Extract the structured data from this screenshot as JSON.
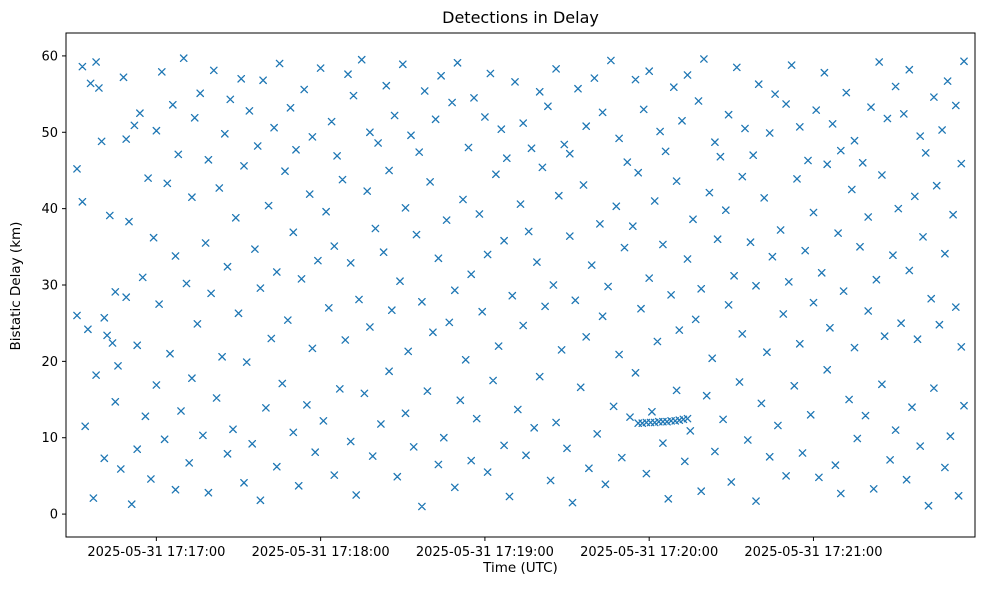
{
  "figure": {
    "title": "Detections in Delay",
    "xlabel": "Time (UTC)",
    "ylabel": "Bistatic Delay (km)"
  },
  "chart_data": {
    "type": "scatter",
    "title": "Detections in Delay",
    "xlabel": "Time (UTC)",
    "ylabel": "Bistatic Delay (km)",
    "marker": "x",
    "marker_color": "#1f77b4",
    "grid": false,
    "legend": "none",
    "x_unit": "seconds since 2025-05-31 17:16:00 UTC",
    "xlim": [
      27,
      359
    ],
    "ylim": [
      -3,
      63
    ],
    "x_ticks": [
      {
        "value": 60,
        "label": "2025-05-31 17:17:00"
      },
      {
        "value": 120,
        "label": "2025-05-31 17:18:00"
      },
      {
        "value": 180,
        "label": "2025-05-31 17:19:00"
      },
      {
        "value": 240,
        "label": "2025-05-31 17:20:00"
      },
      {
        "value": 300,
        "label": "2025-05-31 17:21:00"
      }
    ],
    "y_ticks": [
      0,
      10,
      20,
      30,
      40,
      50,
      60
    ],
    "annotation": "Random uniform scatter of detections 0-60 km across whole window, plus a dense near-linear cluster of detections at ~12 km bistatic delay between ~17:19:56 and ~17:20:14",
    "points": [
      [
        31,
        45.2
      ],
      [
        31,
        26.0
      ],
      [
        33,
        40.9
      ],
      [
        33,
        58.6
      ],
      [
        34,
        11.5
      ],
      [
        35,
        24.2
      ],
      [
        36,
        56.4
      ],
      [
        37,
        2.1
      ],
      [
        38,
        18.2
      ],
      [
        38,
        59.2
      ],
      [
        39,
        55.8
      ],
      [
        40,
        48.8
      ],
      [
        41,
        25.7
      ],
      [
        41,
        7.3
      ],
      [
        42,
        23.4
      ],
      [
        43,
        39.1
      ],
      [
        44,
        22.4
      ],
      [
        45,
        14.7
      ],
      [
        45,
        29.1
      ],
      [
        46,
        19.4
      ],
      [
        47,
        5.9
      ],
      [
        48,
        57.2
      ],
      [
        49,
        28.4
      ],
      [
        49,
        49.1
      ],
      [
        50,
        38.3
      ],
      [
        51,
        1.3
      ],
      [
        52,
        50.9
      ],
      [
        53,
        8.5
      ],
      [
        53,
        22.1
      ],
      [
        54,
        52.5
      ],
      [
        55,
        31.0
      ],
      [
        56,
        12.8
      ],
      [
        57,
        44.0
      ],
      [
        58,
        4.6
      ],
      [
        59,
        36.2
      ],
      [
        60,
        50.2
      ],
      [
        60,
        16.9
      ],
      [
        61,
        27.5
      ],
      [
        62,
        57.9
      ],
      [
        63,
        9.8
      ],
      [
        64,
        43.3
      ],
      [
        65,
        21.0
      ],
      [
        66,
        53.6
      ],
      [
        67,
        3.2
      ],
      [
        67,
        33.8
      ],
      [
        68,
        47.1
      ],
      [
        69,
        13.5
      ],
      [
        70,
        59.7
      ],
      [
        71,
        30.2
      ],
      [
        72,
        6.7
      ],
      [
        73,
        41.5
      ],
      [
        73,
        17.8
      ],
      [
        74,
        51.9
      ],
      [
        75,
        24.9
      ],
      [
        76,
        55.1
      ],
      [
        77,
        10.3
      ],
      [
        78,
        35.5
      ],
      [
        79,
        46.4
      ],
      [
        79,
        2.8
      ],
      [
        80,
        28.9
      ],
      [
        81,
        58.1
      ],
      [
        82,
        15.2
      ],
      [
        83,
        42.7
      ],
      [
        84,
        20.6
      ],
      [
        85,
        49.8
      ],
      [
        86,
        7.9
      ],
      [
        86,
        32.4
      ],
      [
        87,
        54.3
      ],
      [
        88,
        11.1
      ],
      [
        89,
        38.8
      ],
      [
        90,
        26.3
      ],
      [
        91,
        57.0
      ],
      [
        92,
        4.1
      ],
      [
        92,
        45.6
      ],
      [
        93,
        19.9
      ],
      [
        94,
        52.8
      ],
      [
        95,
        9.2
      ],
      [
        96,
        34.7
      ],
      [
        97,
        48.2
      ],
      [
        98,
        1.8
      ],
      [
        98,
        29.6
      ],
      [
        99,
        56.8
      ],
      [
        100,
        13.9
      ],
      [
        101,
        40.4
      ],
      [
        102,
        23.0
      ],
      [
        103,
        50.6
      ],
      [
        104,
        6.2
      ],
      [
        104,
        31.7
      ],
      [
        105,
        59.0
      ],
      [
        106,
        17.1
      ],
      [
        107,
        44.9
      ],
      [
        108,
        25.4
      ],
      [
        109,
        53.2
      ],
      [
        110,
        10.7
      ],
      [
        110,
        36.9
      ],
      [
        111,
        47.7
      ],
      [
        112,
        3.7
      ],
      [
        113,
        30.8
      ],
      [
        114,
        55.6
      ],
      [
        115,
        14.3
      ],
      [
        116,
        41.9
      ],
      [
        117,
        21.7
      ],
      [
        117,
        49.4
      ],
      [
        118,
        8.1
      ],
      [
        119,
        33.2
      ],
      [
        120,
        58.4
      ],
      [
        121,
        12.2
      ],
      [
        122,
        39.6
      ],
      [
        123,
        27.0
      ],
      [
        124,
        51.4
      ],
      [
        125,
        5.1
      ],
      [
        125,
        35.1
      ],
      [
        126,
        46.9
      ],
      [
        127,
        16.4
      ],
      [
        128,
        43.8
      ],
      [
        129,
        22.8
      ],
      [
        130,
        57.6
      ],
      [
        131,
        9.5
      ],
      [
        131,
        32.9
      ],
      [
        132,
        54.8
      ],
      [
        133,
        2.5
      ],
      [
        134,
        28.1
      ],
      [
        135,
        59.5
      ],
      [
        136,
        15.8
      ],
      [
        137,
        42.3
      ],
      [
        138,
        24.5
      ],
      [
        138,
        50.0
      ],
      [
        139,
        7.6
      ],
      [
        140,
        37.4
      ],
      [
        141,
        48.6
      ],
      [
        142,
        11.8
      ],
      [
        143,
        34.3
      ],
      [
        144,
        56.1
      ],
      [
        145,
        18.7
      ],
      [
        145,
        45.0
      ],
      [
        146,
        26.7
      ],
      [
        147,
        52.2
      ],
      [
        148,
        4.9
      ],
      [
        149,
        30.5
      ],
      [
        150,
        58.9
      ],
      [
        151,
        13.2
      ],
      [
        151,
        40.1
      ],
      [
        152,
        21.3
      ],
      [
        153,
        49.6
      ],
      [
        154,
        8.8
      ],
      [
        155,
        36.6
      ],
      [
        156,
        47.4
      ],
      [
        157,
        1.0
      ],
      [
        157,
        27.8
      ],
      [
        158,
        55.4
      ],
      [
        159,
        16.1
      ],
      [
        160,
        43.5
      ],
      [
        161,
        23.8
      ],
      [
        162,
        51.7
      ],
      [
        163,
        6.5
      ],
      [
        163,
        33.5
      ],
      [
        164,
        57.4
      ],
      [
        165,
        10.0
      ],
      [
        166,
        38.5
      ],
      [
        167,
        25.1
      ],
      [
        168,
        53.9
      ],
      [
        169,
        3.5
      ],
      [
        169,
        29.3
      ],
      [
        170,
        59.1
      ],
      [
        171,
        14.9
      ],
      [
        172,
        41.2
      ],
      [
        173,
        20.2
      ],
      [
        174,
        48.0
      ],
      [
        175,
        7.0
      ],
      [
        175,
        31.4
      ],
      [
        176,
        54.5
      ],
      [
        177,
        12.5
      ],
      [
        178,
        39.3
      ],
      [
        179,
        26.5
      ],
      [
        180,
        52.0
      ],
      [
        181,
        5.5
      ],
      [
        181,
        34.0
      ],
      [
        182,
        57.7
      ],
      [
        183,
        17.5
      ],
      [
        184,
        44.5
      ],
      [
        185,
        22.0
      ],
      [
        186,
        50.4
      ],
      [
        187,
        9.0
      ],
      [
        187,
        35.8
      ],
      [
        188,
        46.6
      ],
      [
        189,
        2.3
      ],
      [
        190,
        28.6
      ],
      [
        191,
        56.6
      ],
      [
        192,
        13.7
      ],
      [
        193,
        40.6
      ],
      [
        194,
        24.7
      ],
      [
        194,
        51.2
      ],
      [
        195,
        7.7
      ],
      [
        196,
        37.0
      ],
      [
        197,
        47.9
      ],
      [
        198,
        11.3
      ],
      [
        199,
        33.0
      ],
      [
        200,
        55.3
      ],
      [
        200,
        18.0
      ],
      [
        201,
        45.4
      ],
      [
        202,
        27.2
      ],
      [
        203,
        53.4
      ],
      [
        204,
        4.4
      ],
      [
        205,
        30.0
      ],
      [
        206,
        58.3
      ],
      [
        206,
        12.0
      ],
      [
        207,
        41.7
      ],
      [
        208,
        21.5
      ],
      [
        209,
        48.4
      ],
      [
        210,
        8.6
      ],
      [
        211,
        36.4
      ],
      [
        211,
        47.2
      ],
      [
        212,
        1.5
      ],
      [
        213,
        28.0
      ],
      [
        214,
        55.7
      ],
      [
        215,
        16.6
      ],
      [
        216,
        43.1
      ],
      [
        217,
        23.2
      ],
      [
        217,
        50.8
      ],
      [
        218,
        6.0
      ],
      [
        219,
        32.6
      ],
      [
        220,
        57.1
      ],
      [
        221,
        10.5
      ],
      [
        222,
        38.0
      ],
      [
        223,
        25.9
      ],
      [
        223,
        52.6
      ],
      [
        224,
        3.9
      ],
      [
        225,
        29.8
      ],
      [
        226,
        59.4
      ],
      [
        227,
        14.1
      ],
      [
        228,
        40.3
      ],
      [
        229,
        20.9
      ],
      [
        229,
        49.2
      ],
      [
        230,
        7.4
      ],
      [
        231,
        34.9
      ],
      [
        232,
        46.1
      ],
      [
        233,
        12.7
      ],
      [
        234,
        37.7
      ],
      [
        235,
        56.9
      ],
      [
        235,
        18.5
      ],
      [
        236,
        44.7
      ],
      [
        237,
        26.9
      ],
      [
        238,
        53.0
      ],
      [
        239,
        5.3
      ],
      [
        240,
        30.9
      ],
      [
        240,
        58.0
      ],
      [
        241,
        13.4
      ],
      [
        242,
        41.0
      ],
      [
        243,
        22.6
      ],
      [
        244,
        50.1
      ],
      [
        245,
        9.3
      ],
      [
        245,
        35.3
      ],
      [
        246,
        47.5
      ],
      [
        247,
        2.0
      ],
      [
        248,
        28.7
      ],
      [
        249,
        55.9
      ],
      [
        250,
        16.2
      ],
      [
        250,
        43.6
      ],
      [
        251,
        24.1
      ],
      [
        252,
        51.5
      ],
      [
        253,
        6.9
      ],
      [
        254,
        33.4
      ],
      [
        254,
        57.5
      ],
      [
        255,
        10.9
      ],
      [
        256,
        38.6
      ],
      [
        257,
        25.5
      ],
      [
        258,
        54.1
      ],
      [
        259,
        3.0
      ],
      [
        259,
        29.5
      ],
      [
        260,
        59.6
      ],
      [
        261,
        15.5
      ],
      [
        262,
        42.1
      ],
      [
        263,
        20.4
      ],
      [
        264,
        48.7
      ],
      [
        264,
        8.2
      ],
      [
        265,
        36.0
      ],
      [
        266,
        46.8
      ],
      [
        267,
        12.4
      ],
      [
        268,
        39.8
      ],
      [
        269,
        27.4
      ],
      [
        269,
        52.3
      ],
      [
        270,
        4.2
      ],
      [
        271,
        31.2
      ],
      [
        272,
        58.5
      ],
      [
        273,
        17.3
      ],
      [
        274,
        44.2
      ],
      [
        274,
        23.6
      ],
      [
        275,
        50.5
      ],
      [
        276,
        9.7
      ],
      [
        277,
        35.6
      ],
      [
        278,
        47.0
      ],
      [
        279,
        1.7
      ],
      [
        279,
        29.9
      ],
      [
        280,
        56.3
      ],
      [
        281,
        14.5
      ],
      [
        282,
        41.4
      ],
      [
        283,
        21.2
      ],
      [
        284,
        49.9
      ],
      [
        284,
        7.5
      ],
      [
        285,
        33.7
      ],
      [
        286,
        55.0
      ],
      [
        287,
        11.6
      ],
      [
        288,
        37.2
      ],
      [
        289,
        26.2
      ],
      [
        290,
        53.7
      ],
      [
        290,
        5.0
      ],
      [
        291,
        30.4
      ],
      [
        292,
        58.8
      ],
      [
        293,
        16.8
      ],
      [
        294,
        43.9
      ],
      [
        295,
        22.3
      ],
      [
        295,
        50.7
      ],
      [
        296,
        8.0
      ],
      [
        297,
        34.5
      ],
      [
        298,
        46.3
      ],
      [
        299,
        13.0
      ],
      [
        300,
        39.5
      ],
      [
        300,
        27.7
      ],
      [
        301,
        52.9
      ],
      [
        302,
        4.8
      ],
      [
        303,
        31.6
      ],
      [
        304,
        57.8
      ],
      [
        305,
        18.9
      ],
      [
        305,
        45.8
      ],
      [
        306,
        24.4
      ],
      [
        307,
        51.1
      ],
      [
        308,
        6.4
      ],
      [
        309,
        36.8
      ],
      [
        310,
        47.6
      ],
      [
        310,
        2.7
      ],
      [
        311,
        29.2
      ],
      [
        312,
        55.2
      ],
      [
        313,
        15.0
      ],
      [
        314,
        42.5
      ],
      [
        315,
        21.8
      ],
      [
        315,
        48.9
      ],
      [
        316,
        9.9
      ],
      [
        317,
        35.0
      ],
      [
        318,
        46.0
      ],
      [
        319,
        12.9
      ],
      [
        320,
        38.9
      ],
      [
        320,
        26.6
      ],
      [
        321,
        53.3
      ],
      [
        322,
        3.3
      ],
      [
        323,
        30.7
      ],
      [
        324,
        59.2
      ],
      [
        325,
        17.0
      ],
      [
        325,
        44.4
      ],
      [
        326,
        23.3
      ],
      [
        327,
        51.8
      ],
      [
        328,
        7.1
      ],
      [
        329,
        33.9
      ],
      [
        330,
        56.0
      ],
      [
        330,
        11.0
      ],
      [
        331,
        40.0
      ],
      [
        332,
        25.0
      ],
      [
        333,
        52.4
      ],
      [
        334,
        4.5
      ],
      [
        335,
        31.9
      ],
      [
        335,
        58.2
      ],
      [
        336,
        14.0
      ],
      [
        337,
        41.6
      ],
      [
        338,
        22.9
      ],
      [
        339,
        49.5
      ],
      [
        339,
        8.9
      ],
      [
        340,
        36.3
      ],
      [
        341,
        47.3
      ],
      [
        342,
        1.1
      ],
      [
        343,
        28.2
      ],
      [
        344,
        54.6
      ],
      [
        344,
        16.5
      ],
      [
        345,
        43.0
      ],
      [
        346,
        24.8
      ],
      [
        347,
        50.3
      ],
      [
        348,
        6.1
      ],
      [
        348,
        34.1
      ],
      [
        349,
        56.7
      ],
      [
        350,
        10.2
      ],
      [
        351,
        39.2
      ],
      [
        352,
        27.1
      ],
      [
        352,
        53.5
      ],
      [
        353,
        2.4
      ],
      [
        354,
        21.9
      ],
      [
        354,
        45.9
      ],
      [
        355,
        59.3
      ],
      [
        355,
        14.2
      ],
      [
        236,
        11.9
      ],
      [
        237.5,
        11.9
      ],
      [
        239,
        12.0
      ],
      [
        240.5,
        12.0
      ],
      [
        242,
        12.0
      ],
      [
        243.5,
        12.1
      ],
      [
        245,
        12.1
      ],
      [
        246.5,
        12.1
      ],
      [
        248,
        12.2
      ],
      [
        249.5,
        12.2
      ],
      [
        251,
        12.3
      ],
      [
        252.5,
        12.4
      ],
      [
        254,
        12.5
      ]
    ]
  }
}
